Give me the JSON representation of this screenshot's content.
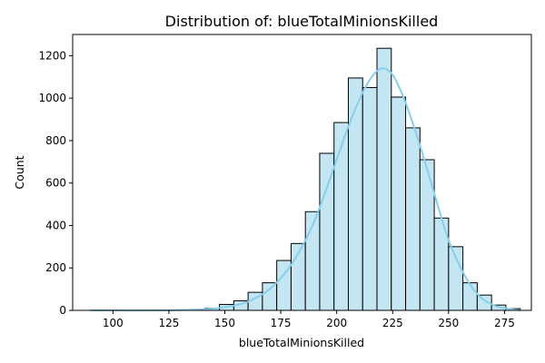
{
  "chart_data": {
    "type": "bar",
    "title": "Distribution of: blueTotalMinionsKilled",
    "xlabel": "blueTotalMinionsKilled",
    "ylabel": "Count",
    "xlim": [
      82,
      287
    ],
    "ylim": [
      0,
      1300
    ],
    "xticks": [
      100,
      125,
      150,
      175,
      200,
      225,
      250,
      275
    ],
    "yticks": [
      0,
      200,
      400,
      600,
      800,
      1000,
      1200
    ],
    "bin_edges": [
      90,
      96.4,
      102.8,
      109.2,
      115.6,
      122,
      128.4,
      134.8,
      141.2,
      147.6,
      154,
      160.4,
      166.8,
      173.2,
      179.6,
      186,
      192.4,
      198.8,
      205.2,
      211.6,
      218,
      224.4,
      230.8,
      237.2,
      243.6,
      250,
      256.4,
      262.8,
      269.2,
      275.6,
      282
    ],
    "counts": [
      1,
      0,
      0,
      0,
      0,
      0,
      1,
      3,
      10,
      28,
      45,
      85,
      130,
      235,
      315,
      465,
      740,
      885,
      1095,
      1050,
      1235,
      1005,
      860,
      710,
      435,
      300,
      130,
      72,
      25,
      8
    ],
    "kde": {
      "x": [
        90,
        120,
        140,
        150,
        160,
        170,
        180,
        190,
        200,
        205,
        210,
        215,
        220,
        225,
        230,
        235,
        240,
        245,
        250,
        255,
        260,
        265,
        270,
        275,
        282
      ],
      "y": [
        0,
        0,
        5,
        15,
        40,
        100,
        220,
        420,
        710,
        860,
        990,
        1090,
        1140,
        1110,
        1000,
        850,
        680,
        500,
        330,
        210,
        115,
        55,
        25,
        10,
        0
      ]
    },
    "colors": {
      "bar_fill": "#c3e6f2",
      "bar_edge": "#000000",
      "kde_line": "#87ceeb"
    },
    "grid": false
  }
}
